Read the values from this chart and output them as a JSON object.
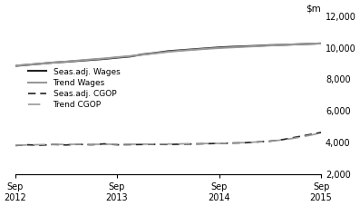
{
  "title": "",
  "ylim": [
    2000,
    12000
  ],
  "yticks": [
    2000,
    4000,
    6000,
    8000,
    10000,
    12000
  ],
  "xtick_labels": [
    "Sep\n2012",
    "Sep\n2013",
    "Sep\n2014",
    "Sep\n2015"
  ],
  "xtick_positions": [
    0,
    4,
    8,
    12
  ],
  "legend": [
    {
      "label": "Seas.adj. Wages",
      "color": "#222222",
      "linestyle": "solid",
      "linewidth": 1.5
    },
    {
      "label": "Trend Wages",
      "color": "#999999",
      "linestyle": "solid",
      "linewidth": 1.5
    },
    {
      "label": "Seas.adj. CGOP",
      "color": "#222222",
      "linestyle": "dashed",
      "linewidth": 1.2
    },
    {
      "label": "Trend CGOP",
      "color": "#999999",
      "linestyle": "dashed",
      "linewidth": 1.2
    }
  ],
  "seas_wages": [
    8850,
    8920,
    8990,
    9060,
    9110,
    9170,
    9230,
    9290,
    9370,
    9440,
    9580,
    9670,
    9780,
    9840,
    9900,
    9960,
    10020,
    10060,
    10090,
    10120,
    10160,
    10180,
    10210,
    10240,
    10270
  ],
  "trend_wages": [
    8870,
    8930,
    8990,
    9060,
    9120,
    9190,
    9260,
    9320,
    9400,
    9470,
    9560,
    9650,
    9740,
    9810,
    9870,
    9930,
    9980,
    10020,
    10060,
    10100,
    10140,
    10180,
    10210,
    10240,
    10270
  ],
  "seas_cgop": [
    3820,
    3870,
    3840,
    3890,
    3860,
    3900,
    3870,
    3930,
    3870,
    3880,
    3890,
    3900,
    3890,
    3910,
    3920,
    3940,
    3960,
    3980,
    4000,
    4050,
    4100,
    4200,
    4350,
    4500,
    4650
  ],
  "trend_cgop": [
    3840,
    3860,
    3880,
    3900,
    3895,
    3905,
    3895,
    3910,
    3900,
    3905,
    3910,
    3920,
    3920,
    3930,
    3940,
    3950,
    3960,
    3980,
    4010,
    4050,
    4100,
    4180,
    4300,
    4450,
    4620
  ],
  "background_color": "#ffffff",
  "spine_color": "#000000"
}
